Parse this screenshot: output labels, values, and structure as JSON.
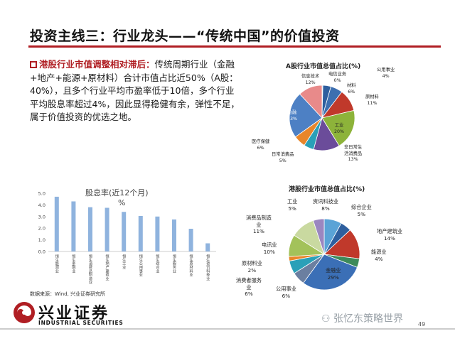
{
  "title": "投资主线三：行业龙头——“传统中国”的价值投资",
  "paragraph": {
    "highlight": "港股行业市值调整相对滞后：",
    "body": "传统周期行业（金融+地产+能源+原材料）合计市值占比近50%（A股：40%），且多个行业平均市盈率低于10倍，多个行业平均股息率超过4%，因此显得稳健有余，弹性不足，属于价值投资的优选之地。"
  },
  "chart_data": [
    {
      "type": "pie",
      "title": "A股行业市值总值占比(%)",
      "slices": [
        {
          "label": "电信业务",
          "value": 0,
          "color": "#4a7bb7"
        },
        {
          "label": "公用事业",
          "value": 4,
          "color": "#2e5f9e"
        },
        {
          "label": "材料",
          "value": 6,
          "color": "#3d6fb0"
        },
        {
          "label": "原材料",
          "value": 11,
          "color": "#c0392b"
        },
        {
          "label": "工业",
          "value": 20,
          "color": "#8db33a"
        },
        {
          "label": "非日常生活消费品",
          "value": 13,
          "color": "#6b4c9a"
        },
        {
          "label": "日常消费品",
          "value": 5,
          "color": "#2aa0b8"
        },
        {
          "label": "医疗保健",
          "value": 6,
          "color": "#e8862a"
        },
        {
          "label": "金融",
          "value": 23,
          "color": "#4d80c4"
        },
        {
          "label": "信息技术",
          "value": 12,
          "color": "#e88a8a"
        }
      ],
      "labels": {
        "dianxin": [
          "电信业务",
          "0%"
        ],
        "gongyong": [
          "公用事业",
          "4%"
        ],
        "cailiao": [
          "材料",
          "6%"
        ],
        "yuancailiao": [
          "原材料",
          "11%"
        ],
        "gongye": [
          "工业",
          "20%"
        ],
        "feirichang": [
          "非日常生",
          "活消费品",
          "13%"
        ],
        "richang": [
          "日常消费品",
          "5%"
        ],
        "yiliao": [
          "医疗保健",
          "6%"
        ],
        "jinrong": [
          "金融",
          "23%"
        ],
        "xinxi": [
          "信息技术",
          "12%"
        ]
      }
    },
    {
      "type": "bar",
      "title": "股息率(近12个月)",
      "title_suffix": "%",
      "categories": [
        "恒生能源业",
        "恒生金融业",
        "恒生消费品制造业",
        "恒生地产建筑业",
        "恒生工业",
        "恒生公用事业",
        "恒生综合业",
        "恒生服务业",
        "恒生原材料业",
        "恒生资讯科技业"
      ],
      "values": [
        4.7,
        4.3,
        3.8,
        3.75,
        3.4,
        3.05,
        3.0,
        2.75,
        1.95,
        0.7
      ],
      "yticks": [
        "5.0",
        "4.0",
        "3.0",
        "2.0",
        "1.0",
        "0.0"
      ],
      "ylim": [
        0,
        5
      ],
      "color": "#8fb3de"
    },
    {
      "type": "pie",
      "title": "港股行业市值总值占比(%)",
      "slices": [
        {
          "label": "资讯科技业",
          "value": 8,
          "color": "#5aa3d6"
        },
        {
          "label": "综合企业",
          "value": 5,
          "color": "#2e5f9e"
        },
        {
          "label": "地产建筑业",
          "value": 14,
          "color": "#c0392b"
        },
        {
          "label": "能源业",
          "value": 4,
          "color": "#3d8a5a"
        },
        {
          "label": "金融业",
          "value": 29,
          "color": "#3b6fb6"
        },
        {
          "label": "公用事业",
          "value": 6,
          "color": "#6b7fa0"
        },
        {
          "label": "消费者服务业",
          "value": 6,
          "color": "#2aa0b8"
        },
        {
          "label": "原材料业",
          "value": 2,
          "color": "#e8862a"
        },
        {
          "label": "电讯业",
          "value": 10,
          "color": "#a3c25a"
        },
        {
          "label": "消费品制造业",
          "value": 11,
          "color": "#c9d9a0"
        },
        {
          "label": "工业",
          "value": 5,
          "color": "#9a86c0"
        }
      ],
      "labels": {
        "gongye": [
          "工业",
          "5%"
        ],
        "zixun": [
          "资讯科技业",
          "8%"
        ],
        "zonghe": [
          "综合企业",
          "5%"
        ],
        "dichan": [
          "地产建筑业",
          "14%"
        ],
        "nengyuan": [
          "能源业",
          "4%"
        ],
        "jinrong": [
          "金融业",
          "29%"
        ],
        "gongyong": [
          "公用事业",
          "6%"
        ],
        "xiaofeifuwu": [
          "消费者服务",
          "业",
          "6%"
        ],
        "yuancailiao": [
          "原材料业",
          "2%"
        ],
        "dianxun": [
          "电讯业",
          "10%"
        ],
        "xiaofeipin": [
          "消费品制造",
          "业",
          "11%"
        ]
      }
    }
  ],
  "source": "数据来源：Wind, 兴业证券研究所",
  "logo": {
    "name": "兴业证券",
    "sub": "INDUSTRIAL SECURITIES"
  },
  "watermark": "张忆东策略世界",
  "page_number": "49",
  "colors": {
    "accent": "#b01e23"
  }
}
